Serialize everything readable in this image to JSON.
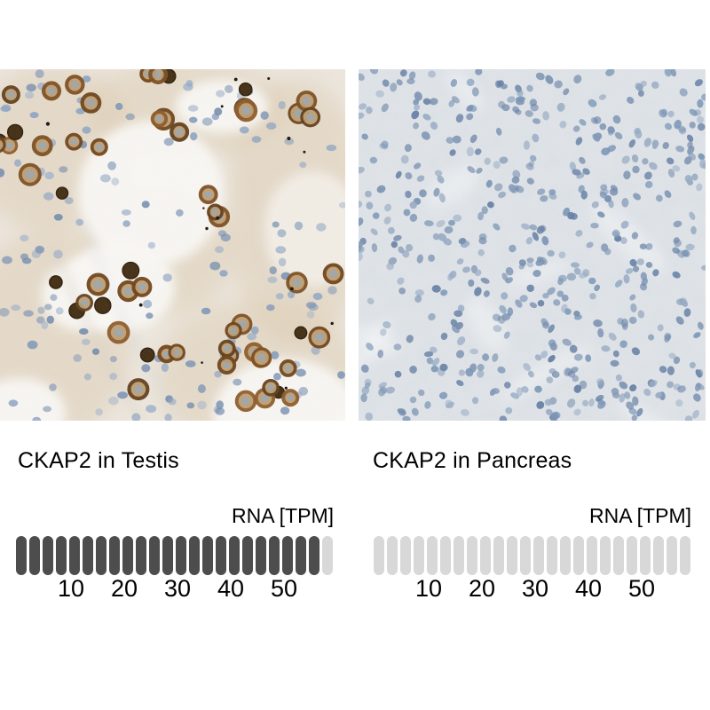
{
  "figure": {
    "type": "immunohistochemistry-comparison",
    "gene": "CKAP2"
  },
  "panels": [
    {
      "title": "CKAP2 in Testis",
      "rna_unit_label": "RNA [TPM]",
      "axis_ticks": [
        "10",
        "20",
        "30",
        "40",
        "50"
      ],
      "bar": {
        "total_segments": 24,
        "filled_segments": 23,
        "filled_color": "#4d4d4d",
        "empty_color": "#d8d8d8"
      },
      "image": {
        "name": "testis-ihc-image",
        "staining": "positive-brown-DAB"
      }
    },
    {
      "title": "CKAP2 in Pancreas",
      "rna_unit_label": "RNA [TPM]",
      "axis_ticks": [
        "10",
        "20",
        "30",
        "40",
        "50"
      ],
      "bar": {
        "total_segments": 24,
        "filled_segments": 0,
        "filled_color": "#4d4d4d",
        "empty_color": "#d8d8d8"
      },
      "image": {
        "name": "pancreas-ihc-image",
        "staining": "negative-blue-only"
      }
    }
  ],
  "chart_data": [
    {
      "type": "bar",
      "title": "CKAP2 in Testis",
      "xlabel": "RNA [TPM]",
      "value_tpm": 57.5,
      "segments_filled": 23,
      "segments_total": 24,
      "tpm_per_segment": 2.5,
      "axis_ticks": [
        10,
        20,
        30,
        40,
        50
      ],
      "xlim": [
        0,
        60
      ],
      "legend_position": "none",
      "grid": false
    },
    {
      "type": "bar",
      "title": "CKAP2 in Pancreas",
      "xlabel": "RNA [TPM]",
      "value_tpm": 0,
      "segments_filled": 0,
      "segments_total": 24,
      "tpm_per_segment": 2.5,
      "axis_ticks": [
        10,
        20,
        30,
        40,
        50
      ],
      "xlim": [
        0,
        60
      ],
      "legend_position": "none",
      "grid": false
    }
  ],
  "colors": {
    "bar_filled": "#4d4d4d",
    "bar_empty": "#d8d8d8",
    "text_color": "#000000",
    "testis_background": "#ece6dd",
    "lumen_white": "#f9f8f5",
    "dab_brown": "#7a4a1c",
    "dab_brown_dark": "#3f2a10",
    "hematoxylin_blue": "#8ca3c2",
    "pancreas_background": "#dfe3e7",
    "pancreas_nucleus_blue": "#7390b2"
  }
}
